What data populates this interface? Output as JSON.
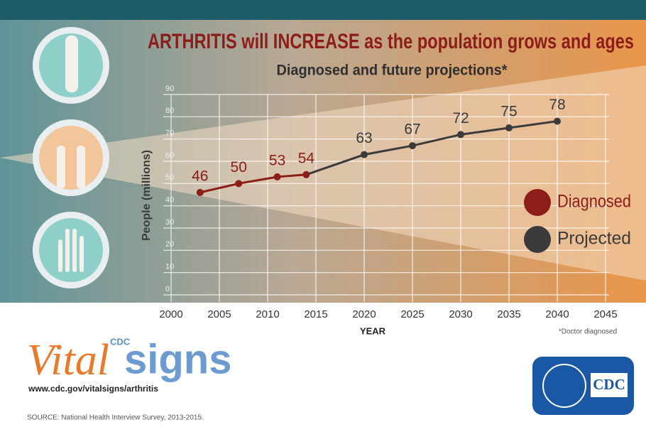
{
  "chart_data": {
    "type": "line",
    "title": "ARTHRITIS will INCREASE as the population grows and ages",
    "subtitle": "Diagnosed and future projections*",
    "ylabel": "People (millions)",
    "xlabel": "YEAR",
    "footnote": "*Doctor diagnosed",
    "xlim": [
      2000,
      2045
    ],
    "xticks": [
      2000,
      2005,
      2010,
      2015,
      2020,
      2025,
      2030,
      2035,
      2040,
      2045
    ],
    "ylim": [
      0,
      90
    ],
    "yticks": [
      0,
      10,
      20,
      30,
      40,
      50,
      60,
      70,
      80,
      90
    ],
    "grid": true,
    "legend": "right",
    "series": [
      {
        "name": "Diagnosed",
        "color": "#8c1d18",
        "x": [
          2003,
          2007,
          2011,
          2014
        ],
        "values": [
          46,
          50,
          53,
          54
        ]
      },
      {
        "name": "Projected",
        "color": "#3b3b3b",
        "x": [
          2020,
          2025,
          2030,
          2035,
          2040
        ],
        "values": [
          63,
          67,
          72,
          75,
          78
        ]
      }
    ]
  },
  "branding": {
    "logo_top": "CDC",
    "logo_vital": "Vital",
    "logo_signs": "signs",
    "url": "www.cdc.gov/vitalsigns/arthritis",
    "badge": "CDC",
    "source": "SOURCE: National Health Interview Survey, 2013-2015."
  }
}
